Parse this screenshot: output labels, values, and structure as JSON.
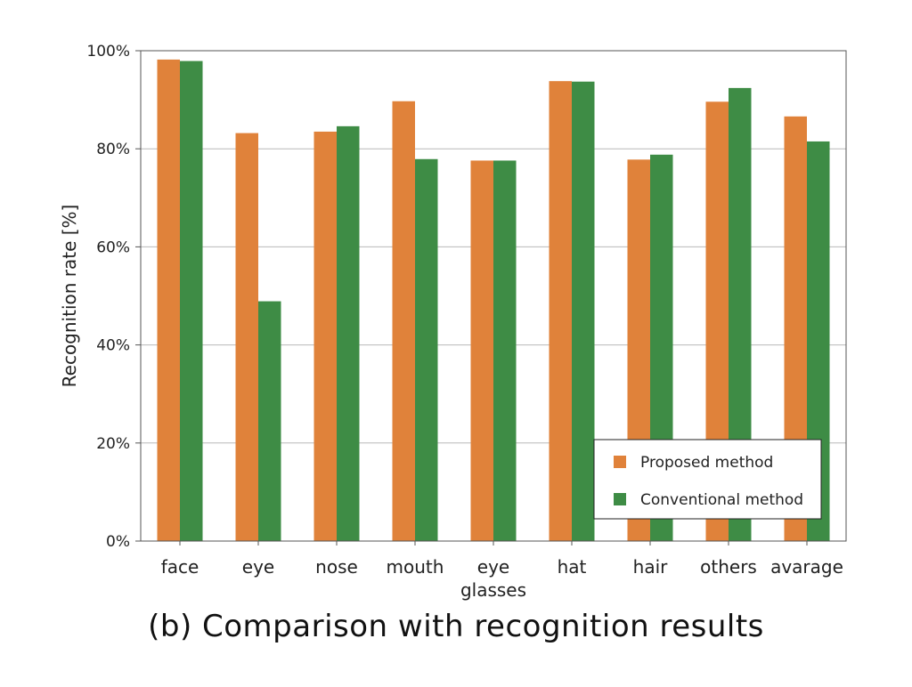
{
  "caption": "(b) Comparison with recognition results",
  "colors": {
    "proposed": "#e0823a",
    "conventional": "#3e8c45",
    "grid": "#b8b8b8",
    "axis": "#555555",
    "legend_border": "#222222"
  },
  "chart_data": {
    "type": "bar",
    "title": "",
    "xlabel": "",
    "ylabel": "Recognition rate [%]",
    "ylim": [
      0,
      100
    ],
    "yticks": [
      0,
      20,
      40,
      60,
      80,
      100
    ],
    "ytick_labels": [
      "0%",
      "20%",
      "40%",
      "60%",
      "80%",
      "100%"
    ],
    "grid": true,
    "legend_position": "bottom-right",
    "categories": [
      "face",
      "eye",
      "nose",
      "mouth",
      "eye\nglasses",
      "hat",
      "hair",
      "others",
      "avarage"
    ],
    "series": [
      {
        "name": "Proposed method",
        "color": "#e0823a",
        "values": [
          98.2,
          83.2,
          83.5,
          89.7,
          77.6,
          93.8,
          77.8,
          89.6,
          86.6
        ]
      },
      {
        "name": "Conventional method",
        "color": "#3e8c45",
        "values": [
          97.9,
          48.9,
          84.6,
          77.9,
          77.6,
          93.7,
          78.8,
          92.4,
          81.5
        ]
      }
    ]
  }
}
